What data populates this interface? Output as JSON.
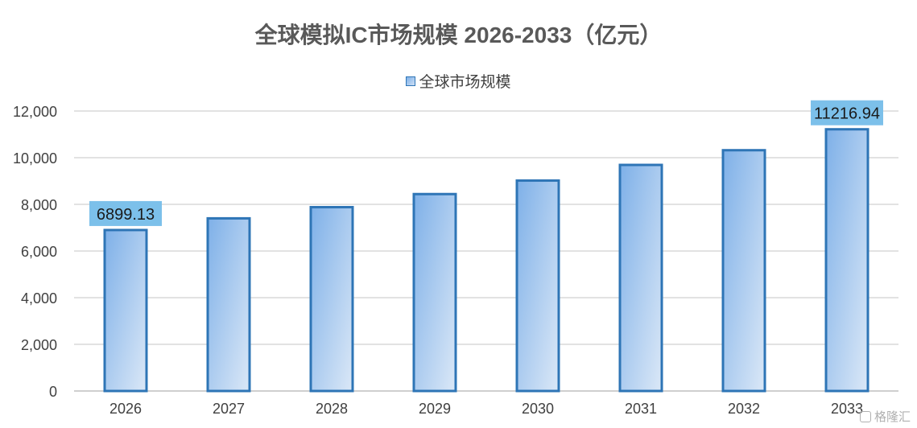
{
  "chart_data": {
    "type": "bar",
    "title": "全球模拟IC市场规模 2026-2033（亿元）",
    "categories": [
      "2026",
      "2027",
      "2028",
      "2029",
      "2030",
      "2031",
      "2032",
      "2033"
    ],
    "series": [
      {
        "name": "全球市场规模",
        "values": [
          6899.13,
          7400,
          7880,
          8440,
          9020,
          9690,
          10320,
          11216.94
        ]
      }
    ],
    "data_labels": [
      {
        "category": "2026",
        "text": "6899.13"
      },
      {
        "category": "2033",
        "text": "11216.94"
      }
    ],
    "ylim": [
      0,
      12000
    ],
    "yticks": [
      0,
      2000,
      4000,
      6000,
      8000,
      10000,
      12000
    ],
    "ytick_labels": [
      "0",
      "2,000",
      "4,000",
      "6,000",
      "8,000",
      "10,000",
      "12,000"
    ],
    "xlabel": "",
    "ylabel": "",
    "grid": true,
    "legend_position": "top",
    "colors": {
      "bar_border": "#2e75b6",
      "bar_fill_start": "#7eb0e8",
      "bar_fill_end": "#dbe8f7",
      "label_bg": "#7cc0ea",
      "grid": "#d9d9d9"
    }
  },
  "watermark": {
    "text": "格隆汇"
  }
}
